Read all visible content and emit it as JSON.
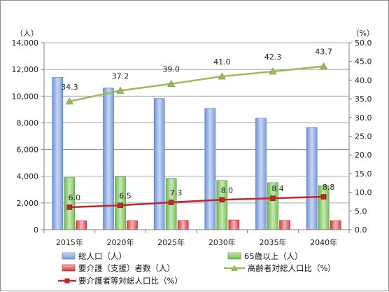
{
  "chart_data": {
    "type": "bar",
    "categories": [
      "2015年",
      "2020年",
      "2025年",
      "2030年",
      "2035年",
      "2040年"
    ],
    "left_axis": {
      "unit": "（人）",
      "ylim": [
        0,
        14000
      ],
      "ticks": [
        "0",
        "2,000",
        "4,000",
        "6,000",
        "8,000",
        "10,000",
        "12,000",
        "14,000"
      ],
      "tick_values": [
        0,
        2000,
        4000,
        6000,
        8000,
        10000,
        12000,
        14000
      ]
    },
    "right_axis": {
      "unit": "（%）",
      "ylim": [
        0,
        50
      ],
      "ticks": [
        "0.0",
        "5.0",
        "10.0",
        "15.0",
        "20.0",
        "25.0",
        "30.0",
        "35.0",
        "40.0",
        "45.0",
        "50.0"
      ],
      "tick_values": [
        0,
        5,
        10,
        15,
        20,
        25,
        30,
        35,
        40,
        45,
        50
      ]
    },
    "gridlines": true,
    "legend_position": "bottom",
    "bar_series": [
      {
        "name": "総人口（人）",
        "values": [
          11400,
          10600,
          9820,
          9080,
          8350,
          7640
        ],
        "color": "#8fb0e6"
      },
      {
        "name": "65歳以上（人）",
        "values": [
          3900,
          3950,
          3840,
          3680,
          3520,
          3300
        ],
        "color": "#8fce6e"
      },
      {
        "name": "要介護（支援）者数（人）",
        "values": [
          670,
          680,
          690,
          730,
          690,
          680
        ],
        "color": "#e85a5a"
      }
    ],
    "line_series": [
      {
        "name": "高齢者対総人口比（%）",
        "values": [
          34.3,
          37.2,
          39.0,
          41.0,
          42.3,
          43.7
        ],
        "labels": [
          "34.3",
          "37.2",
          "39.0",
          "41.0",
          "42.3",
          "43.7"
        ],
        "color": "#9bbb59",
        "axis": "right"
      },
      {
        "name": "要介護者等対総人口比（%）",
        "values": [
          6.0,
          6.5,
          7.3,
          8.0,
          8.4,
          8.8
        ],
        "labels": [
          "6.0",
          "6.5",
          "7.3",
          "8.0",
          "8.4",
          "8.8"
        ],
        "color": "#c0282d",
        "axis": "right"
      }
    ]
  }
}
